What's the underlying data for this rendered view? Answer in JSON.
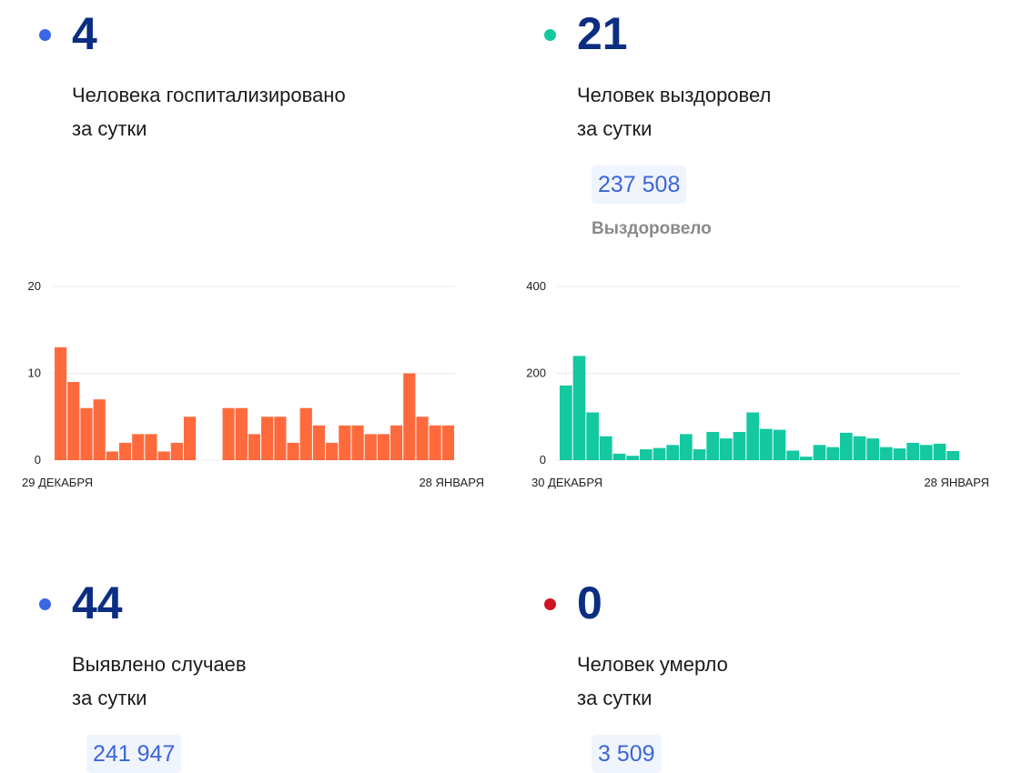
{
  "cards": {
    "hospitalized": {
      "value": "4",
      "caption_line1": "Человека госпитализировано",
      "caption_line2": "за сутки",
      "dot_color": "#3b66e6"
    },
    "recovered": {
      "value": "21",
      "caption_line1": "Человек выздоровел",
      "caption_line2": "за сутки",
      "total": "237 508",
      "total_label": "Выздоровело",
      "dot_color": "#14c8a0"
    },
    "cases": {
      "value": "44",
      "caption_line1": "Выявлено случаев",
      "caption_line2": "за сутки",
      "total": "241 947",
      "dot_color": "#3b66e6"
    },
    "deaths": {
      "value": "0",
      "caption_line1": "Человек умерло",
      "caption_line2": "за сутки",
      "total": "3 509",
      "dot_color": "#cc1424"
    }
  },
  "chart_data": [
    {
      "type": "bar",
      "color": "#ff6a3d",
      "x_start_label": "29 ДЕКАБРЯ",
      "x_end_label": "28 ЯНВАРЯ",
      "yticks": [
        0,
        10,
        20
      ],
      "ylim": [
        0,
        20
      ],
      "values": [
        13,
        9,
        6,
        7,
        1,
        2,
        3,
        3,
        1,
        2,
        5,
        0,
        0,
        6,
        6,
        3,
        5,
        5,
        2,
        6,
        4,
        2,
        4,
        4,
        3,
        3,
        4,
        10,
        5,
        4,
        4
      ]
    },
    {
      "type": "bar",
      "color": "#14c8a0",
      "x_start_label": "30 ДЕКАБРЯ",
      "x_end_label": "28 ЯНВАРЯ",
      "yticks": [
        0,
        200,
        400
      ],
      "ylim": [
        0,
        400
      ],
      "values": [
        172,
        240,
        110,
        55,
        15,
        10,
        25,
        28,
        35,
        60,
        25,
        65,
        50,
        65,
        110,
        72,
        70,
        22,
        8,
        35,
        30,
        63,
        55,
        50,
        30,
        27,
        40,
        35,
        38,
        21
      ]
    }
  ]
}
